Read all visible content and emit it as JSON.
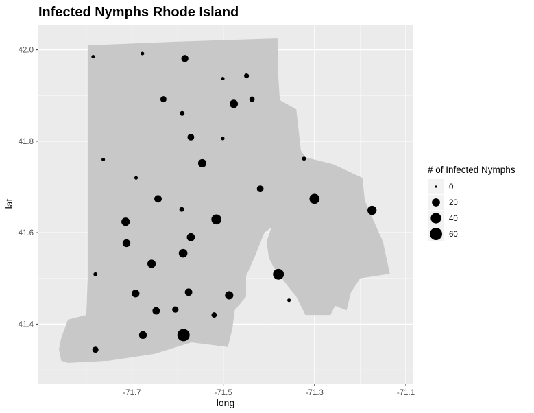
{
  "chart_data": {
    "type": "scatter",
    "title": "Infected Nymphs Rhode Island",
    "xlabel": "long",
    "ylabel": "lat",
    "xlim": [
      -71.905,
      -71.085
    ],
    "ylim": [
      41.27,
      42.055
    ],
    "x_ticks": [
      {
        "value": -71.7,
        "label": "-71.7"
      },
      {
        "value": -71.5,
        "label": "-71.5"
      },
      {
        "value": -71.3,
        "label": "-71.3"
      },
      {
        "value": -71.1,
        "label": "-71.1"
      }
    ],
    "y_ticks": [
      {
        "value": 41.4,
        "label": "41.4"
      },
      {
        "value": 41.6,
        "label": "41.6"
      },
      {
        "value": 41.8,
        "label": "41.8"
      },
      {
        "value": 42.0,
        "label": "42.0"
      }
    ],
    "x_minor": [
      -71.8,
      -71.6,
      -71.4,
      -71.2
    ],
    "y_minor": [
      41.3,
      41.5,
      41.7,
      41.9
    ],
    "grid": true,
    "legend": {
      "title": "# of Infected Nymphs",
      "position": "right",
      "entries": [
        {
          "label": "0",
          "value": 0
        },
        {
          "label": "20",
          "value": 20
        },
        {
          "label": "40",
          "value": 40
        },
        {
          "label": "60",
          "value": 60
        }
      ]
    },
    "colors": {
      "panel": "#ebebeb",
      "grid": "#ffffff",
      "state_fill": "#c8c8c8",
      "points": "#000000"
    },
    "state_outline": [
      [
        -71.797,
        42.01
      ],
      [
        -71.6,
        42.018
      ],
      [
        -71.381,
        42.025
      ],
      [
        -71.38,
        41.95
      ],
      [
        -71.376,
        41.89
      ],
      [
        -71.34,
        41.87
      ],
      [
        -71.33,
        41.78
      ],
      [
        -71.32,
        41.765
      ],
      [
        -71.26,
        41.75
      ],
      [
        -71.195,
        41.72
      ],
      [
        -71.19,
        41.67
      ],
      [
        -71.15,
        41.58
      ],
      [
        -71.135,
        41.51
      ],
      [
        -71.2,
        41.5
      ],
      [
        -71.22,
        41.47
      ],
      [
        -71.23,
        41.43
      ],
      [
        -71.255,
        41.44
      ],
      [
        -71.265,
        41.42
      ],
      [
        -71.32,
        41.42
      ],
      [
        -71.34,
        41.46
      ],
      [
        -71.36,
        41.485
      ],
      [
        -71.39,
        41.525
      ],
      [
        -71.4,
        41.545
      ],
      [
        -71.405,
        41.58
      ],
      [
        -71.39,
        41.625
      ],
      [
        -71.37,
        41.63
      ],
      [
        -71.41,
        41.6
      ],
      [
        -71.43,
        41.55
      ],
      [
        -71.45,
        41.505
      ],
      [
        -71.45,
        41.46
      ],
      [
        -71.475,
        41.43
      ],
      [
        -71.48,
        41.39
      ],
      [
        -71.49,
        41.35
      ],
      [
        -71.57,
        41.36
      ],
      [
        -71.65,
        41.335
      ],
      [
        -71.75,
        41.32
      ],
      [
        -71.84,
        41.315
      ],
      [
        -71.855,
        41.32
      ],
      [
        -71.86,
        41.345
      ],
      [
        -71.855,
        41.37
      ],
      [
        -71.84,
        41.41
      ],
      [
        -71.8,
        41.42
      ],
      [
        -71.797,
        41.5
      ],
      [
        -71.797,
        41.7
      ],
      [
        -71.797,
        41.85
      ]
    ],
    "points": [
      {
        "x": -71.785,
        "y": 41.985,
        "value": 1
      },
      {
        "x": -71.677,
        "y": 41.992,
        "value": 1
      },
      {
        "x": -71.584,
        "y": 41.981,
        "value": 14
      },
      {
        "x": -71.501,
        "y": 41.937,
        "value": 1
      },
      {
        "x": -71.449,
        "y": 41.943,
        "value": 4
      },
      {
        "x": -71.631,
        "y": 41.892,
        "value": 9
      },
      {
        "x": -71.477,
        "y": 41.882,
        "value": 22
      },
      {
        "x": -71.437,
        "y": 41.892,
        "value": 6
      },
      {
        "x": -71.59,
        "y": 41.861,
        "value": 4
      },
      {
        "x": -71.571,
        "y": 41.809,
        "value": 12
      },
      {
        "x": -71.501,
        "y": 41.806,
        "value": 1
      },
      {
        "x": -71.763,
        "y": 41.76,
        "value": 1
      },
      {
        "x": -71.546,
        "y": 41.752,
        "value": 22
      },
      {
        "x": -71.323,
        "y": 41.762,
        "value": 2
      },
      {
        "x": -71.691,
        "y": 41.72,
        "value": 1
      },
      {
        "x": -71.419,
        "y": 41.696,
        "value": 12
      },
      {
        "x": -71.643,
        "y": 41.674,
        "value": 16
      },
      {
        "x": -71.3,
        "y": 41.674,
        "value": 36
      },
      {
        "x": -71.591,
        "y": 41.651,
        "value": 4
      },
      {
        "x": -71.174,
        "y": 41.649,
        "value": 28
      },
      {
        "x": -71.714,
        "y": 41.624,
        "value": 22
      },
      {
        "x": -71.515,
        "y": 41.629,
        "value": 36
      },
      {
        "x": -71.571,
        "y": 41.59,
        "value": 20
      },
      {
        "x": -71.712,
        "y": 41.577,
        "value": 18
      },
      {
        "x": -71.588,
        "y": 41.555,
        "value": 24
      },
      {
        "x": -71.657,
        "y": 41.532,
        "value": 22
      },
      {
        "x": -71.78,
        "y": 41.509,
        "value": 2
      },
      {
        "x": -71.379,
        "y": 41.509,
        "value": 44
      },
      {
        "x": -71.692,
        "y": 41.467,
        "value": 18
      },
      {
        "x": -71.576,
        "y": 41.47,
        "value": 16
      },
      {
        "x": -71.487,
        "y": 41.463,
        "value": 22
      },
      {
        "x": -71.356,
        "y": 41.452,
        "value": 1
      },
      {
        "x": -71.647,
        "y": 41.429,
        "value": 16
      },
      {
        "x": -71.605,
        "y": 41.432,
        "value": 10
      },
      {
        "x": -71.52,
        "y": 41.42,
        "value": 6
      },
      {
        "x": -71.676,
        "y": 41.376,
        "value": 18
      },
      {
        "x": -71.587,
        "y": 41.376,
        "value": 60
      },
      {
        "x": -71.78,
        "y": 41.344,
        "value": 9
      }
    ]
  }
}
